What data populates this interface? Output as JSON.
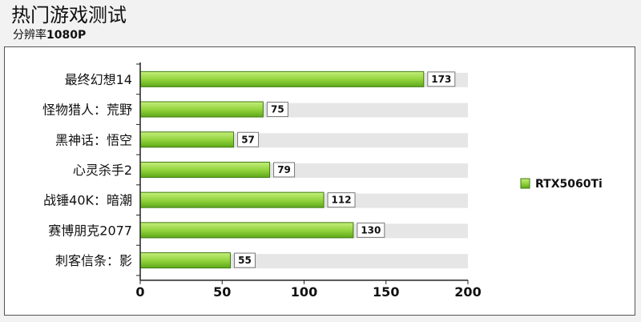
{
  "header": {
    "title": "热门游戏测试",
    "subtitle_prefix": "分辨率",
    "subtitle_value": "1080P"
  },
  "colors": {
    "bar_light": "#c6ee7c",
    "bar_dark": "#5ea81a",
    "lane": "#e6e6e6",
    "frame_bg": "#ffffff"
  },
  "chart_data": {
    "type": "bar",
    "orientation": "horizontal",
    "title": "热门游戏测试",
    "subtitle": "分辨率1080P",
    "xlabel": "",
    "ylabel": "",
    "categories": [
      "最终幻想14",
      "怪物猎人：荒野",
      "黑神话：悟空",
      "心灵杀手2",
      "战锤40K：暗潮",
      "赛博朋克2077",
      "刺客信条：影"
    ],
    "series": [
      {
        "name": "RTX5060Ti",
        "values": [
          173,
          75,
          57,
          79,
          112,
          130,
          55
        ]
      }
    ],
    "xlim": [
      0,
      200
    ],
    "xticks": [
      0,
      50,
      100,
      150,
      200
    ],
    "legend_position": "right",
    "data_labels": true,
    "grid": false
  }
}
